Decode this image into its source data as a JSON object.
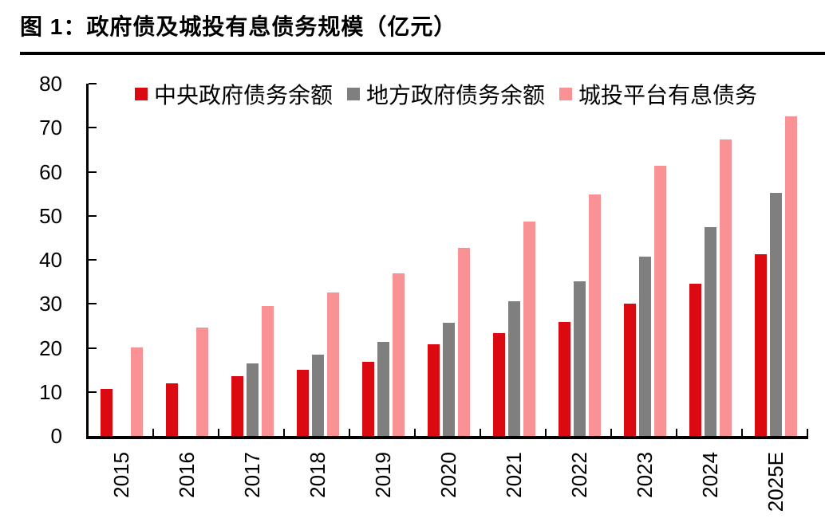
{
  "figure": {
    "label_and_title": "图 1：政府债及城投有息债务规模（亿元）"
  },
  "chart_data": {
    "type": "bar",
    "figure_label": "图 1",
    "title": "政府债及城投有息债务规模（亿元）",
    "unit": "亿元",
    "categories": [
      "2015",
      "2016",
      "2017",
      "2018",
      "2019",
      "2020",
      "2021",
      "2022",
      "2023",
      "2024",
      "2025E"
    ],
    "series": [
      {
        "key": "central-government-debt",
        "name": "中央政府债务余额",
        "color": "#da0a10",
        "values": [
          10.7,
          12.0,
          13.5,
          15.0,
          16.8,
          20.9,
          23.3,
          25.9,
          30.0,
          34.6,
          41.3
        ]
      },
      {
        "key": "local-government-debt",
        "name": "地方政府债务余额",
        "color": "#7f7f7f",
        "values": [
          null,
          null,
          16.5,
          18.4,
          21.3,
          25.7,
          30.5,
          35.1,
          40.7,
          47.5,
          55.2
        ]
      },
      {
        "key": "lgfv-interest-bearing-debt",
        "name": "城投平台有息债务",
        "color": "#f99294",
        "values": [
          20.0,
          24.7,
          29.5,
          32.5,
          37.0,
          42.7,
          48.7,
          54.8,
          61.4,
          67.3,
          72.6
        ]
      }
    ],
    "xlabel": "",
    "ylabel": "",
    "ylim": [
      0,
      80
    ],
    "yticks": [
      0,
      10,
      20,
      30,
      40,
      50,
      60,
      70,
      80
    ],
    "grid": false,
    "legend_position": "top-center",
    "axis_color": "#000000",
    "background_color": "#ffffff"
  }
}
